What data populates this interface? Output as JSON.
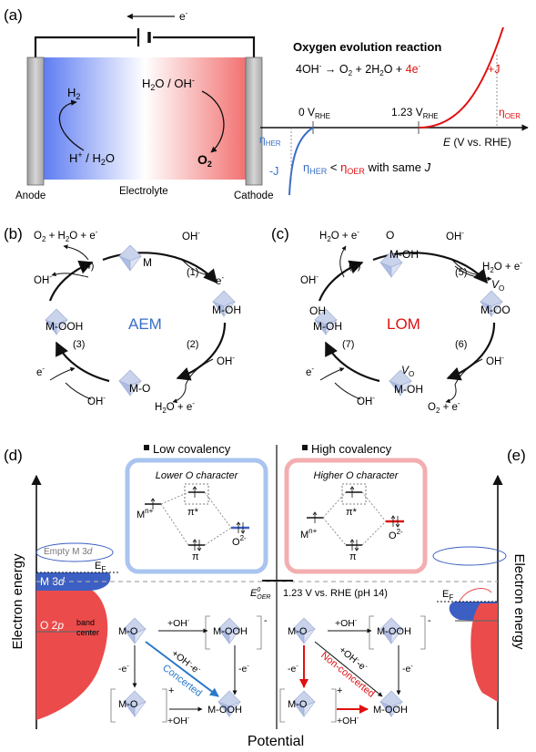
{
  "panel_labels": {
    "a": "(a)",
    "b": "(b)",
    "c": "(c)",
    "d": "(d)",
    "e": "(e)"
  },
  "panel_a": {
    "electron": "e",
    "electron_sup": "-",
    "left_species": "H",
    "left_species_sub": "2",
    "left_bottom": "H",
    "left_bottom_sup": "+",
    "left_bottom_rest": " / H",
    "left_bottom_sub": "2",
    "left_bottom_end": "O",
    "right_top": "H",
    "right_top_sub": "2",
    "right_top_rest": "O / OH",
    "right_top_sup": "-",
    "right_bottom": "O",
    "right_bottom_sub": "2",
    "anode": "Anode",
    "electrolyte": "Electrolyte",
    "cathode": "Cathode",
    "oer_title": "Oxygen evolution reaction",
    "eq_a": "4OH",
    "eq_a_sup": "-",
    "eq_arrow": " → ",
    "eq_b": "O",
    "eq_b_sub": "2",
    "eq_c": " + 2H",
    "eq_c_sub": "2",
    "eq_d": "O + ",
    "eq_e": "4e",
    "eq_e_sup": "-",
    "zero_label": "0 V",
    "zero_sub": "RHE",
    "v123_label": "1.23 V",
    "v123_sub": "RHE",
    "eta": "η",
    "her_sub": "HER",
    "oer_sub": "OER",
    "plus_j": "+J",
    "minus_j": "-J",
    "axis_e": "E",
    "axis_rest": " (V vs. RHE)",
    "compare_with": " with same ",
    "compare_j": "J",
    "lt": " < ",
    "colors": {
      "her": "#3a6ec8",
      "oer": "#e01010",
      "anode_blue": "#5f7df2",
      "cathode_red": "#f27272",
      "electrode": "#b8b8b8"
    }
  },
  "aem": {
    "center": "AEM",
    "m": "M",
    "m_oh": "M-OH",
    "m_o": "M-O",
    "m_ooh": "M-OOH",
    "oh": "OH",
    "minus": "-",
    "e": "e",
    "h2o_e_a": "H",
    "h2o_e_b": "O + e",
    "o2_a": "O",
    "o2_b": " + H",
    "o2_c": "O + e",
    "steps": [
      "(1)",
      "(2)",
      "(3)",
      "(4)"
    ],
    "sub2": "2"
  },
  "lom": {
    "center": "LOM",
    "o": "O",
    "m_oh": "M-OH",
    "m_oo": "M-OO",
    "v": "V",
    "v_sub": "O",
    "oh": "OH",
    "minus": "-",
    "e": "e",
    "h2o_e_a": "H",
    "h2o_e_b": "O + e",
    "o2_a": "O",
    "o2_b": " + e",
    "steps": [
      "(5)",
      "(6)",
      "(7)",
      "(8)"
    ],
    "sub2": "2"
  },
  "panel_d": {
    "low_cov": "Low covalency",
    "high_cov": "High covalency",
    "lower_o": "Lower O character",
    "higher_o": "Higher O character",
    "m_ion": "M",
    "m_ion_sup": "n+",
    "o_ion": "O",
    "o_ion_sup": "2-",
    "pi": "π",
    "pi_star": "π*",
    "y_axis": "Electron energy",
    "x_axis": "Potential",
    "empty_m3d": "Empty M 3",
    "d": "d",
    "m3d": "M 3",
    "o2p": "O 2",
    "p": "p",
    "band_center_1": "band",
    "band_center_2": "center",
    "ef": "E",
    "ef_sub": "F",
    "eoer": "E",
    "eoer_sup": "0",
    "eoer_sub": "OER",
    "ref_potential": "1.23 V vs. RHE (pH 14)",
    "concerted": "Concerted",
    "non_concerted": "Non-concerted",
    "plus_oh": "+OH",
    "minus_e": "-e",
    "mixed": "+OH",
    "mixed_rest": "-e",
    "plus": "+",
    "minus": "-",
    "m_o": "M-O",
    "m_ooh": "M-OOH",
    "colors": {
      "blue_box": "#a9c4ef",
      "red_box": "#f3aeb0",
      "m3d": "#3c5fc3",
      "o2p": "#ec4b4b",
      "concerted": "#2a78c8",
      "nonconcerted": "#e01010"
    }
  }
}
